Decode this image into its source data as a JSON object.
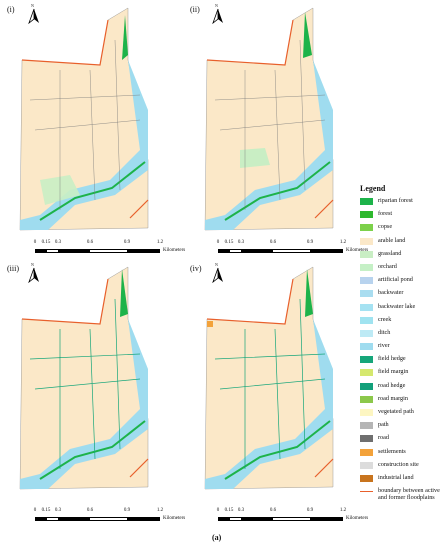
{
  "panels": [
    {
      "label": "(i)"
    },
    {
      "label": "(ii)"
    },
    {
      "label": "(iii)"
    },
    {
      "label": "(iv)"
    }
  ],
  "north_symbol": "N",
  "scale_bar": {
    "ticks": [
      "0",
      "0.15",
      "0.3",
      "0.6",
      "0.9",
      "1.2"
    ],
    "unit": "Kilometers"
  },
  "legend": {
    "title": "Legend",
    "items": [
      {
        "label": "riparian forest",
        "color": "#1db34a"
      },
      {
        "label": "forest",
        "color": "#2eb82e"
      },
      {
        "label": "copse",
        "color": "#7cd14a"
      },
      {
        "label": "arable land",
        "color": "#fbe8c8"
      },
      {
        "label": "grassland",
        "color": "#c9eec4"
      },
      {
        "label": "orchard",
        "color": "#c5f0c6"
      },
      {
        "label": "artificial pond",
        "color": "#b8d3ee"
      },
      {
        "label": "backwater",
        "color": "#a9ddf0"
      },
      {
        "label": "backwater lake",
        "color": "#a5e2f2"
      },
      {
        "label": "creek",
        "color": "#a0e3f0"
      },
      {
        "label": "ditch",
        "color": "#bdeaf5"
      },
      {
        "label": "river",
        "color": "#9fdcef"
      },
      {
        "label": "field hedge",
        "color": "#16a67a"
      },
      {
        "label": "field margin",
        "color": "#d5e86e"
      },
      {
        "label": "road hedge",
        "color": "#12a07a"
      },
      {
        "label": "road margin",
        "color": "#8cc84b"
      },
      {
        "label": "vegetated path",
        "color": "#fdf6c2"
      },
      {
        "label": "path",
        "color": "#b5b5b5"
      },
      {
        "label": "road",
        "color": "#6f6f6f"
      },
      {
        "label": "settlements",
        "color": "#f3a23a"
      },
      {
        "label": "construction site",
        "color": "#dcdcdc"
      },
      {
        "label": "industrial land",
        "color": "#c8741e"
      },
      {
        "label": "boundary between active and former floodplains",
        "color": "#e8602c"
      }
    ]
  },
  "figure_label": "(a)"
}
